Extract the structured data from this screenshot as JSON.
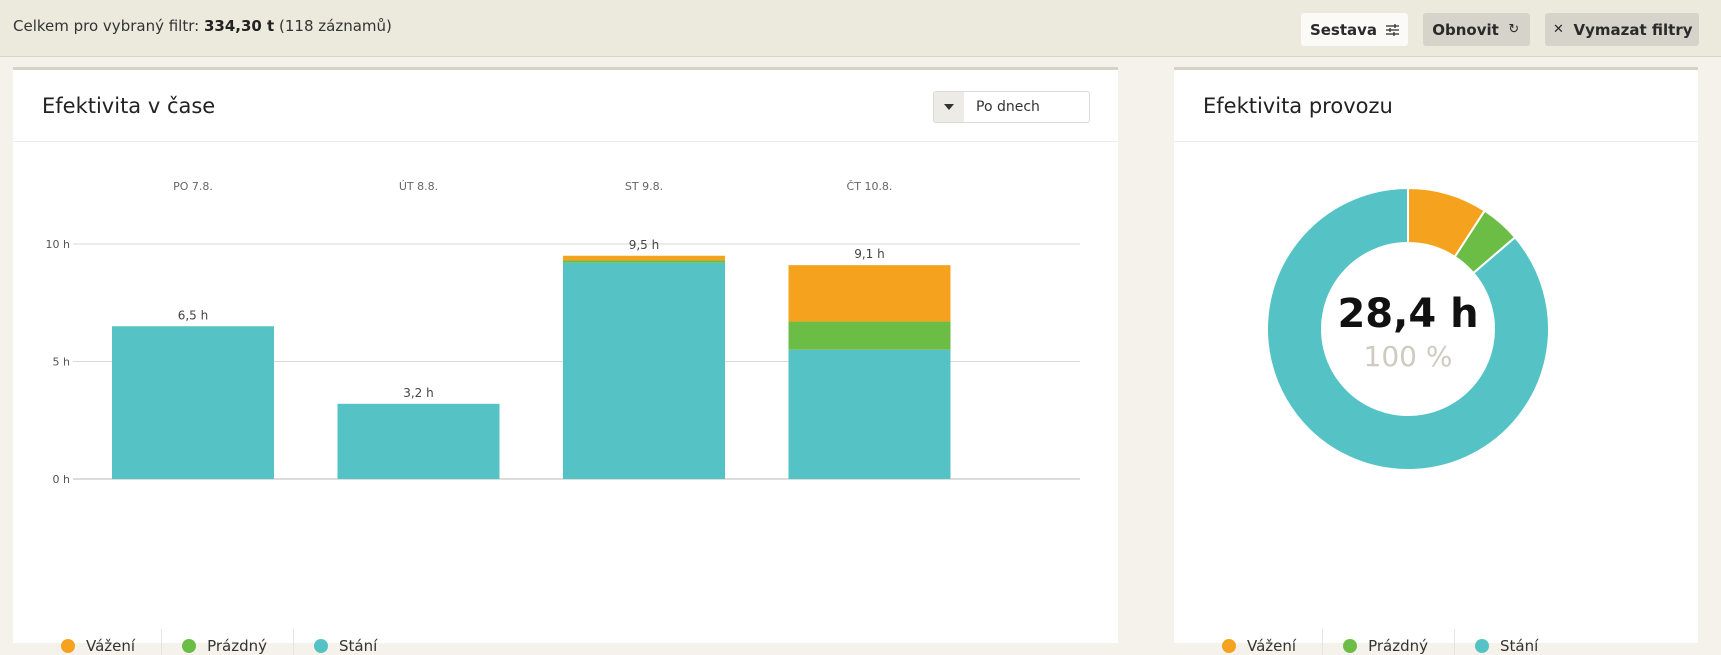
{
  "topbar": {
    "summary_prefix": "Celkem pro vybraný filtr: ",
    "summary_value": "334,30 t",
    "summary_suffix": " (118 záznamů)",
    "buttons": {
      "sestava": "Sestava",
      "obnovit": "Obnovit",
      "vymazat": "Vymazat filtry"
    }
  },
  "colors": {
    "vazeni": "#f5a31f",
    "prazdny": "#6cbd45",
    "stani": "#55c3c5"
  },
  "left_card": {
    "title": "Efektivita v čase",
    "select_value": "Po dnech"
  },
  "right_card": {
    "title": "Efektivita provozu",
    "center_value": "28,4 h",
    "center_percent": "100 %"
  },
  "legend": [
    {
      "label": "Vážení",
      "color_key": "vazeni"
    },
    {
      "label": "Prázdný",
      "color_key": "prazdny"
    },
    {
      "label": "Stání",
      "color_key": "stani"
    }
  ],
  "chart_data": [
    {
      "type": "bar",
      "stacked": true,
      "categories": [
        "PO 7.8.",
        "ÚT 8.8.",
        "ST 9.8.",
        "ČT 10.8."
      ],
      "series": [
        {
          "name": "Stání",
          "color": "#55c3c5",
          "values": [
            6.5,
            3.2,
            9.2,
            5.5
          ]
        },
        {
          "name": "Prázdný",
          "color": "#6cbd45",
          "values": [
            0,
            0,
            0.1,
            1.2
          ]
        },
        {
          "name": "Vážení",
          "color": "#f5a31f",
          "values": [
            0,
            0,
            0.2,
            2.4
          ]
        }
      ],
      "totals": [
        "6,5 h",
        "3,2 h",
        "9,5 h",
        "9,1 h"
      ],
      "yticks": [
        0,
        5,
        10
      ],
      "ytick_labels": [
        "0 h",
        "5 h",
        "10 h"
      ],
      "ylim": [
        0,
        10
      ],
      "grid": true,
      "legend": "bottom-left"
    },
    {
      "type": "pie",
      "donut": true,
      "slices": [
        {
          "name": "Vážení",
          "color": "#f5a31f",
          "value": 2.6
        },
        {
          "name": "Prázdný",
          "color": "#6cbd45",
          "value": 1.3
        },
        {
          "name": "Stání",
          "color": "#55c3c5",
          "value": 24.5
        }
      ],
      "legend": "bottom"
    }
  ]
}
